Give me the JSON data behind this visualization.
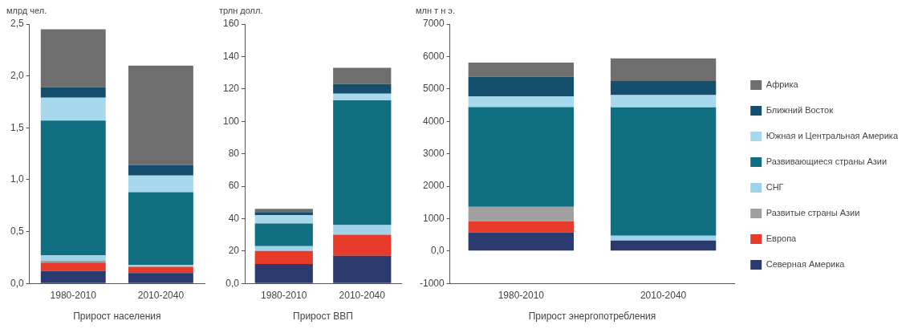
{
  "chart_data": [
    {
      "type": "bar",
      "stacked": true,
      "ylabel": "млрд чел.",
      "xlabel": "Прирост населения",
      "categories": [
        "1980-2010",
        "2010-2040"
      ],
      "ylim": [
        0,
        2.5
      ],
      "yticks": [
        {
          "value": 0,
          "label": "0,0"
        },
        {
          "value": 0.5,
          "label": "0,5"
        },
        {
          "value": 1,
          "label": "1,0"
        },
        {
          "value": 1.5,
          "label": "1,5"
        },
        {
          "value": 2,
          "label": "2,0"
        },
        {
          "value": 2.5,
          "label": "2,5"
        }
      ],
      "grid": false,
      "legend": false,
      "series": [
        {
          "color": "#2a3a6e",
          "values": [
            0.12,
            0.1
          ]
        },
        {
          "color": "#e63a2a",
          "values": [
            0.08,
            0.06
          ]
        },
        {
          "color": "#a0a0a0",
          "values": [
            0.02,
            0
          ]
        },
        {
          "color": "#9fd3ea",
          "values": [
            0.05,
            0.02
          ]
        },
        {
          "color": "#0f6e80",
          "values": [
            1.3,
            0.7
          ]
        },
        {
          "color": "#a8d8ec",
          "values": [
            0.22,
            0.16
          ]
        },
        {
          "color": "#14506e",
          "values": [
            0.1,
            0.1
          ]
        },
        {
          "color": "#6e6e6e",
          "values": [
            0.56,
            0.96
          ]
        }
      ]
    },
    {
      "type": "bar",
      "stacked": true,
      "ylabel": "трлн долл.",
      "xlabel": "Прирост ВВП",
      "categories": [
        "1980-2010",
        "2010-2040"
      ],
      "ylim": [
        0,
        160
      ],
      "yticks": [
        {
          "value": 0,
          "label": "0,0"
        },
        20,
        40,
        60,
        80,
        100,
        120,
        140,
        160
      ],
      "grid": false,
      "legend": false,
      "series": [
        {
          "color": "#2a3a6e",
          "values": [
            12,
            17
          ]
        },
        {
          "color": "#e63a2a",
          "values": [
            8,
            13
          ]
        },
        {
          "color": "#a0a0a0",
          "values": [
            0,
            0
          ]
        },
        {
          "color": "#9fd3ea",
          "values": [
            3,
            6
          ]
        },
        {
          "color": "#0f6e80",
          "values": [
            14,
            77
          ]
        },
        {
          "color": "#a8d8ec",
          "values": [
            5,
            4
          ]
        },
        {
          "color": "#14506e",
          "values": [
            2,
            6
          ]
        },
        {
          "color": "#6e6e6e",
          "values": [
            2,
            10
          ]
        }
      ]
    },
    {
      "type": "bar",
      "stacked": true,
      "ylabel": "млн т н э.",
      "xlabel": "Прирост энергопотребления",
      "categories": [
        "1980-2010",
        "2010-2040"
      ],
      "ylim": [
        -1000,
        7000
      ],
      "yticks": [
        -1000,
        {
          "value": 0,
          "label": "0,0"
        },
        1000,
        2000,
        3000,
        4000,
        5000,
        6000,
        7000
      ],
      "grid": false,
      "legend": "right",
      "series": [
        {
          "name": "Северная Америка",
          "color": "#2a3a6e",
          "values": [
            570,
            320
          ]
        },
        {
          "name": "Европа",
          "color": "#e63a2a",
          "values": [
            350,
            0
          ]
        },
        {
          "name": "Развитые страны Азии",
          "color": "#a0a0a0",
          "values": [
            440,
            0
          ]
        },
        {
          "name": "СНГ",
          "color": "#9fd3ea",
          "values": [
            0,
            150
          ]
        },
        {
          "name": "Развивающиеся страны Азии",
          "color": "#0f6e80",
          "values": [
            3080,
            3960
          ]
        },
        {
          "name": "Южная и Центральная Америка",
          "color": "#a8d8ec",
          "values": [
            330,
            380
          ]
        },
        {
          "name": "Ближний Восток",
          "color": "#14506e",
          "values": [
            610,
            430
          ]
        },
        {
          "name": "Африка",
          "color": "#6e6e6e",
          "values": [
            430,
            700
          ]
        }
      ]
    }
  ]
}
